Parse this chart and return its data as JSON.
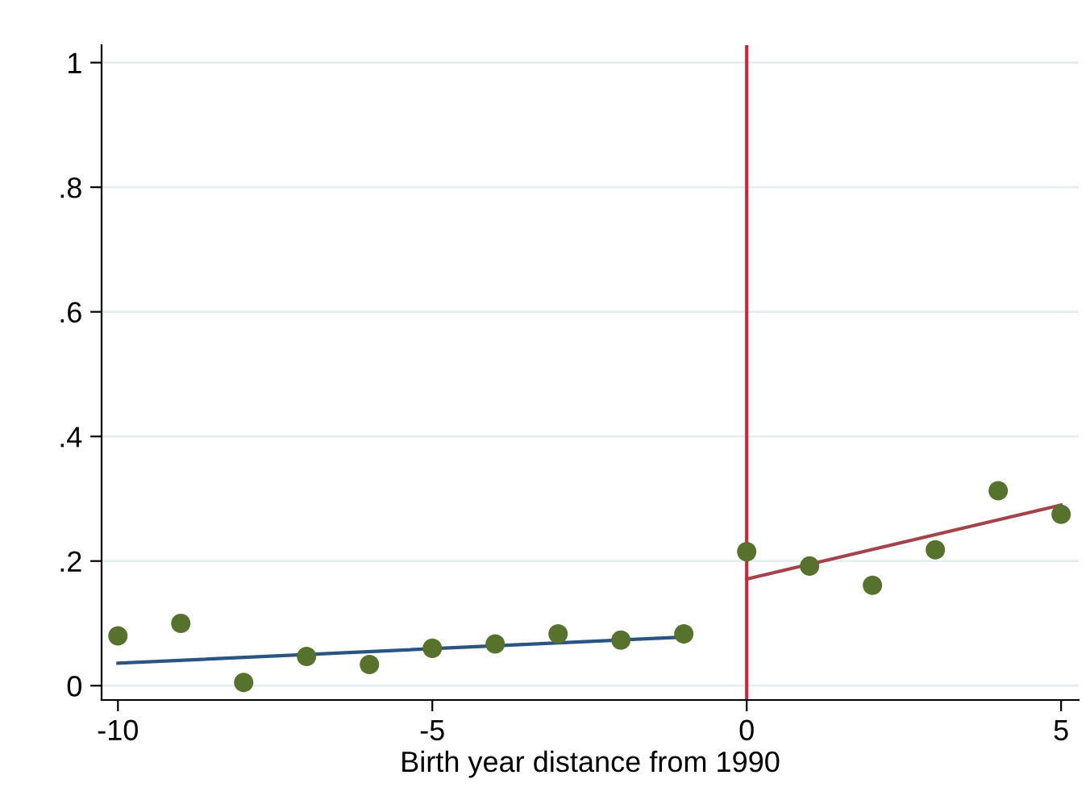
{
  "chart_data": {
    "type": "scatter",
    "xlabel": "Birth year distance from 1990",
    "x": [
      -10,
      -9,
      -8,
      -7,
      -6,
      -5,
      -4,
      -3,
      -2,
      -1,
      0,
      1,
      2,
      3,
      4,
      5
    ],
    "series": [
      {
        "color": "#56722c",
        "marker": "circle",
        "values": [
          0.08,
          0.1,
          0.005,
          0.047,
          0.034,
          0.06,
          0.067,
          0.083,
          0.073,
          0.083,
          0.215,
          0.192,
          0.161,
          0.218,
          0.313,
          0.275
        ]
      },
      {
        "type": "line",
        "color": "#2a5583",
        "x": [
          -10,
          -1
        ],
        "values": [
          0.036,
          0.078
        ]
      },
      {
        "type": "line",
        "color": "#a4434a",
        "x": [
          0,
          5
        ],
        "values": [
          0.171,
          0.29
        ]
      }
    ],
    "xlim": [
      -10.26,
      5.28
    ],
    "ylim": [
      -0.023,
      1.028
    ],
    "xticks": [
      -10,
      -5,
      0,
      5
    ],
    "yticks": [
      0,
      {
        "value": 0.2,
        "label": ".2"
      },
      {
        "value": 0.4,
        "label": ".4"
      },
      {
        "value": 0.6,
        "label": ".6"
      },
      {
        "value": 0.8,
        "label": ".8"
      },
      1
    ],
    "ref_lines": [
      {
        "axis": "x",
        "value": 0,
        "color": "#c8283e"
      }
    ],
    "grid": "y"
  }
}
